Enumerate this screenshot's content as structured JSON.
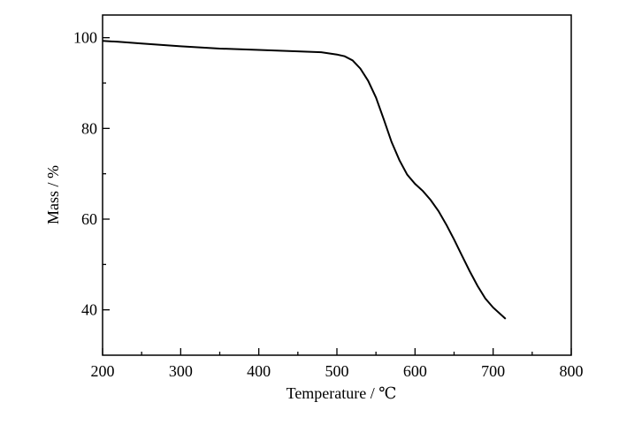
{
  "chart_data": {
    "type": "line",
    "title": "",
    "xlabel": "Temperature / ℃",
    "ylabel": "Mass / %",
    "xlim": [
      200,
      800
    ],
    "ylim": [
      30,
      105
    ],
    "x_major_ticks": [
      200,
      300,
      400,
      500,
      600,
      700,
      800
    ],
    "x_minor_ticks": [
      250,
      350,
      450,
      550,
      650,
      750
    ],
    "y_major_ticks": [
      40,
      60,
      80,
      100
    ],
    "y_minor_ticks": [
      50,
      70,
      90
    ],
    "grid": false,
    "legend": "none",
    "series": [
      {
        "color": "#000000",
        "points": [
          [
            200,
            99.3
          ],
          [
            220,
            99.1
          ],
          [
            250,
            98.7
          ],
          [
            300,
            98.1
          ],
          [
            350,
            97.6
          ],
          [
            400,
            97.3
          ],
          [
            450,
            97.0
          ],
          [
            480,
            96.8
          ],
          [
            500,
            96.3
          ],
          [
            510,
            95.9
          ],
          [
            520,
            95.0
          ],
          [
            530,
            93.2
          ],
          [
            540,
            90.5
          ],
          [
            550,
            86.8
          ],
          [
            560,
            82.0
          ],
          [
            570,
            77.0
          ],
          [
            580,
            73.0
          ],
          [
            590,
            69.8
          ],
          [
            600,
            67.8
          ],
          [
            610,
            66.2
          ],
          [
            620,
            64.2
          ],
          [
            630,
            61.8
          ],
          [
            640,
            58.8
          ],
          [
            650,
            55.5
          ],
          [
            660,
            52.0
          ],
          [
            670,
            48.5
          ],
          [
            680,
            45.3
          ],
          [
            690,
            42.5
          ],
          [
            700,
            40.5
          ],
          [
            716,
            38.0
          ]
        ]
      }
    ]
  }
}
